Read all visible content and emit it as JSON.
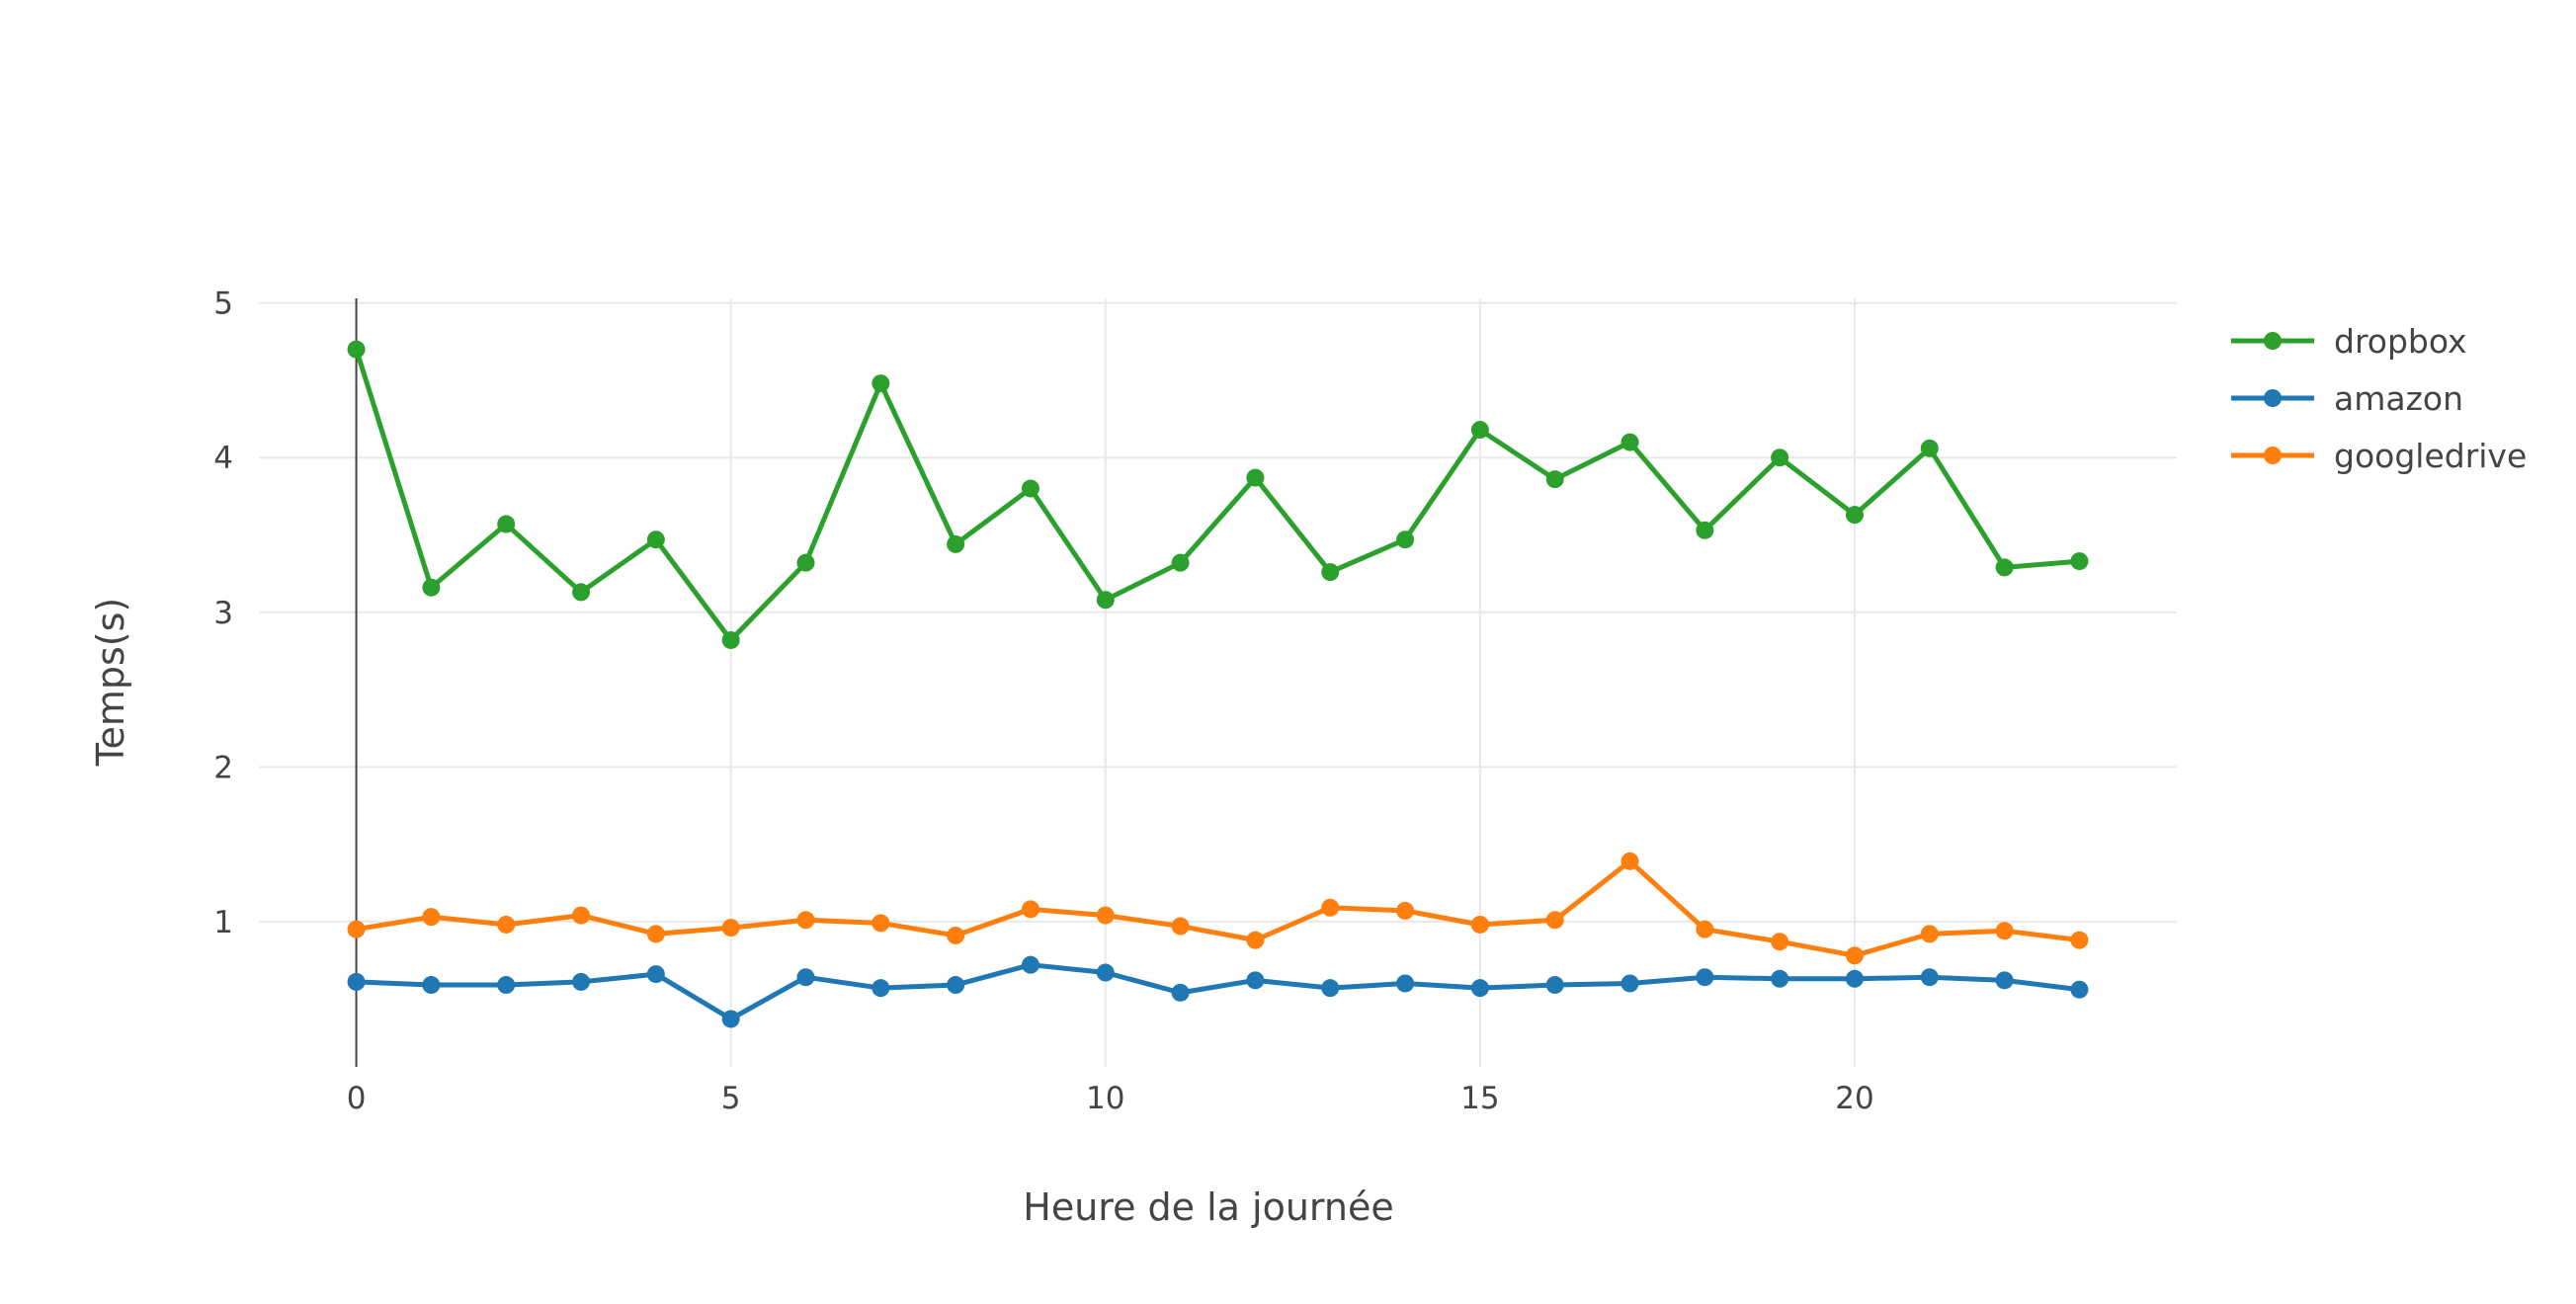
{
  "chart_data": {
    "type": "line",
    "title": "",
    "xlabel": "Heure de la journée",
    "ylabel": "Temps(s)",
    "x": [
      0,
      1,
      2,
      3,
      4,
      5,
      6,
      7,
      8,
      9,
      10,
      11,
      12,
      13,
      14,
      15,
      16,
      17,
      18,
      19,
      20,
      21,
      22,
      23
    ],
    "xlim": [
      -1.3,
      24.3
    ],
    "ylim": [
      0.06,
      5.03
    ],
    "x_ticks": [
      0,
      5,
      10,
      15,
      20
    ],
    "x_tick_labels": [
      "0",
      "5",
      "10",
      "15",
      "20"
    ],
    "y_ticks": [
      1,
      2,
      3,
      4,
      5
    ],
    "y_tick_labels": [
      "1",
      "2",
      "3",
      "4",
      "5"
    ],
    "grid": true,
    "legend_position": "top-right",
    "series": [
      {
        "name": "dropbox",
        "color": "#2ca02c",
        "values": [
          4.7,
          3.16,
          3.57,
          3.13,
          3.47,
          2.82,
          3.32,
          4.48,
          3.44,
          3.8,
          3.08,
          3.32,
          3.87,
          3.26,
          3.47,
          4.18,
          3.86,
          4.1,
          3.53,
          4.0,
          3.63,
          4.06,
          3.29,
          3.33
        ]
      },
      {
        "name": "amazon",
        "color": "#1f77b4",
        "values": [
          0.61,
          0.59,
          0.59,
          0.61,
          0.66,
          0.37,
          0.64,
          0.57,
          0.59,
          0.72,
          0.67,
          0.54,
          0.62,
          0.57,
          0.6,
          0.57,
          0.59,
          0.6,
          0.64,
          0.63,
          0.63,
          0.64,
          0.62,
          0.56
        ]
      },
      {
        "name": "googledrive",
        "color": "#ff7f0e",
        "values": [
          0.95,
          1.03,
          0.98,
          1.04,
          0.92,
          0.96,
          1.01,
          0.99,
          0.91,
          1.08,
          1.04,
          0.97,
          0.88,
          1.09,
          1.07,
          0.98,
          1.01,
          1.39,
          0.95,
          0.87,
          0.78,
          0.92,
          0.94,
          0.88
        ]
      }
    ]
  }
}
